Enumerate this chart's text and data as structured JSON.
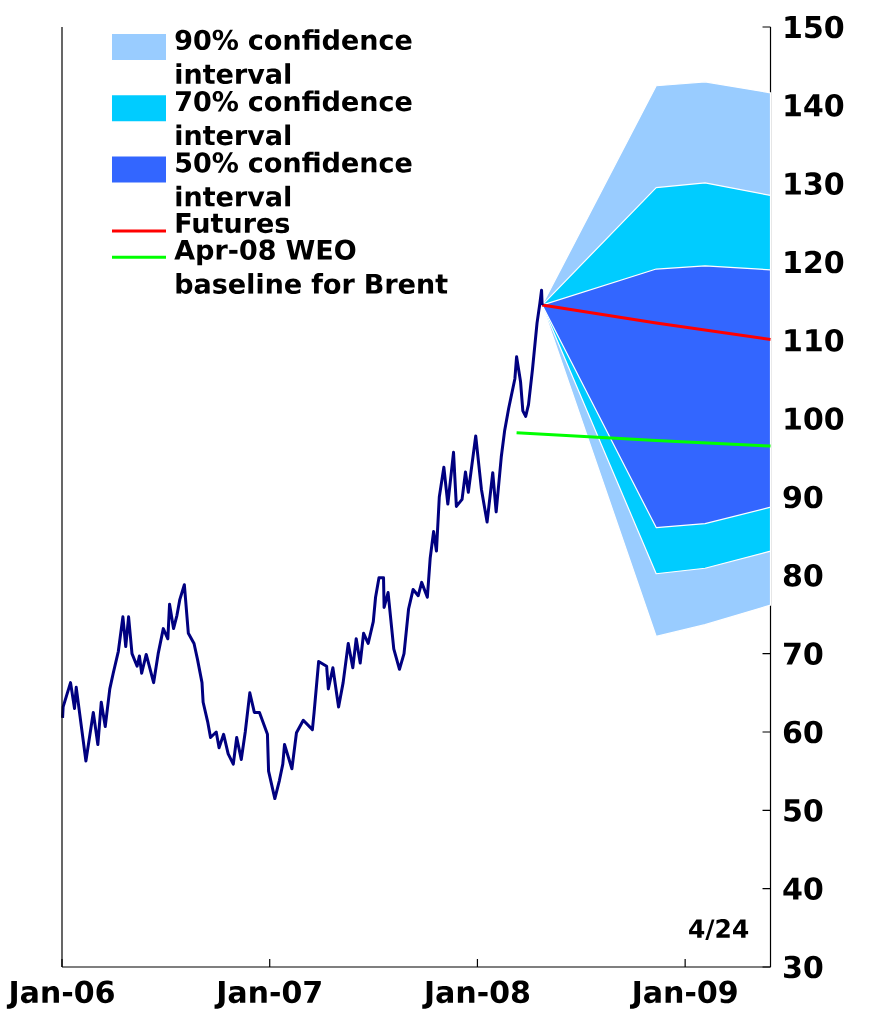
{
  "chart_data": {
    "type": "line",
    "xlim": [
      "2006-01-01",
      "2009-05-31"
    ],
    "ylim": [
      30,
      150
    ],
    "xticks": [
      {
        "value": "2006-01-01",
        "label": "Jan-06"
      },
      {
        "value": "2007-01-01",
        "label": "Jan-07"
      },
      {
        "value": "2008-01-01",
        "label": "Jan-08"
      },
      {
        "value": "2009-01-01",
        "label": "Jan-09"
      }
    ],
    "yticks": [
      30,
      40,
      50,
      60,
      70,
      80,
      90,
      100,
      110,
      120,
      130,
      140,
      150
    ],
    "legend": "top left",
    "annotations": [
      "4/24"
    ],
    "series": [
      {
        "type": "area",
        "name": "90% confidence interval",
        "color": "#99ccff",
        "x": [
          "2008-04-24",
          "2008-11-11",
          "2009-02-05",
          "2009-05-31"
        ],
        "values": [
          null,
          null,
          null,
          null
        ],
        "lower": [
          114.5,
          72.2,
          73.7,
          76.2
        ],
        "upper": [
          114.5,
          142.5,
          143.0,
          141.6
        ]
      },
      {
        "type": "area",
        "name": "70% confidence interval",
        "color": "#00ccff",
        "x": [
          "2008-04-24",
          "2008-11-11",
          "2009-02-05",
          "2009-05-31"
        ],
        "values": [
          null,
          null,
          null,
          null
        ],
        "lower": [
          114.5,
          80.2,
          80.9,
          83.1
        ],
        "upper": [
          114.5,
          129.5,
          130.1,
          128.5
        ]
      },
      {
        "type": "area",
        "name": "50% confidence interval",
        "color": "#3366ff",
        "x": [
          "2008-04-24",
          "2008-11-11",
          "2009-02-05",
          "2009-05-31"
        ],
        "values": [
          null,
          null,
          null,
          null
        ],
        "lower": [
          114.5,
          86.1,
          86.6,
          88.7
        ],
        "upper": [
          114.5,
          119.1,
          119.5,
          119.0
        ]
      },
      {
        "name": "Futures",
        "color": "#ff0000",
        "x": [
          "2008-04-24",
          "2008-11-11",
          "2009-05-31"
        ],
        "values": [
          114.5,
          112.2,
          110.1
        ]
      },
      {
        "name": "Apr-08 WEO baseline for Brent",
        "color": "#00ff00",
        "x": [
          "2008-03-10",
          "2008-11-11",
          "2009-05-31"
        ],
        "values": [
          98.2,
          97.2,
          96.5
        ]
      },
      {
        "color": "#000080",
        "x": [
          "2006-01-02",
          "2006-01-03",
          "2006-01-16",
          "2006-01-23",
          "2006-01-26",
          "2006-02-12",
          "2006-02-25",
          "2006-03-05",
          "2006-03-11",
          "2006-03-18",
          "2006-03-26",
          "2006-04-01",
          "2006-04-10",
          "2006-04-18",
          "2006-04-23",
          "2006-04-28",
          "2006-05-04",
          "2006-05-13",
          "2006-05-17",
          "2006-05-21",
          "2006-05-29",
          "2006-06-11",
          "2006-06-19",
          "2006-06-28",
          "2006-07-06",
          "2006-07-09",
          "2006-07-16",
          "2006-07-22",
          "2006-07-27",
          "2006-08-04",
          "2006-08-11",
          "2006-08-21",
          "2006-08-27",
          "2006-09-04",
          "2006-09-06",
          "2006-09-14",
          "2006-09-19",
          "2006-09-29",
          "2006-10-04",
          "2006-10-12",
          "2006-10-20",
          "2006-10-29",
          "2006-11-04",
          "2006-11-12",
          "2006-11-19",
          "2006-11-27",
          "2006-12-05",
          "2006-12-14",
          "2006-12-28",
          "2006-12-30",
          "2007-01-10",
          "2007-01-18",
          "2007-01-24",
          "2007-01-27",
          "2007-02-09",
          "2007-02-17",
          "2007-03-01",
          "2007-03-17",
          "2007-03-20",
          "2007-03-28",
          "2007-04-11",
          "2007-04-14",
          "2007-04-22",
          "2007-05-02",
          "2007-05-10",
          "2007-05-19",
          "2007-05-27",
          "2007-06-02",
          "2007-06-09",
          "2007-06-15",
          "2007-06-23",
          "2007-07-02",
          "2007-07-06",
          "2007-07-12",
          "2007-07-20",
          "2007-07-21",
          "2007-07-28",
          "2007-08-07",
          "2007-08-17",
          "2007-08-25",
          "2007-09-02",
          "2007-09-10",
          "2007-09-19",
          "2007-09-25",
          "2007-10-05",
          "2007-10-10",
          "2007-10-16",
          "2007-10-21",
          "2007-10-26",
          "2007-11-03",
          "2007-11-10",
          "2007-11-20",
          "2007-11-25",
          "2007-12-05",
          "2007-12-11",
          "2007-12-16",
          "2007-12-29",
          "2008-01-08",
          "2008-01-18",
          "2008-01-28",
          "2008-02-03",
          "2008-02-12",
          "2008-02-18",
          "2008-02-25",
          "2008-03-07",
          "2008-03-10",
          "2008-03-17",
          "2008-03-21",
          "2008-03-26",
          "2008-03-31",
          "2008-04-07",
          "2008-04-15",
          "2008-04-20",
          "2008-04-23",
          "2008-04-24"
        ],
        "values": [
          61.8,
          63.2,
          66.3,
          63.0,
          65.7,
          56.3,
          62.5,
          58.4,
          63.8,
          60.7,
          65.5,
          67.5,
          70.3,
          74.7,
          70.9,
          74.7,
          70.0,
          68.4,
          69.7,
          67.5,
          69.9,
          66.3,
          70.0,
          73.2,
          71.9,
          76.3,
          73.2,
          74.9,
          76.9,
          78.8,
          72.6,
          71.3,
          69.3,
          66.3,
          63.8,
          61.3,
          59.3,
          60.0,
          58.0,
          59.7,
          57.2,
          55.9,
          59.3,
          56.5,
          60.0,
          65.0,
          62.5,
          62.5,
          59.7,
          55.0,
          51.5,
          53.8,
          55.9,
          58.4,
          55.3,
          59.9,
          61.5,
          60.3,
          62.5,
          69.0,
          68.4,
          65.5,
          68.2,
          63.2,
          66.3,
          71.3,
          68.2,
          71.9,
          68.8,
          72.6,
          71.3,
          74.1,
          77.2,
          79.7,
          79.7,
          75.9,
          77.8,
          70.6,
          68.0,
          70.0,
          75.7,
          78.2,
          77.4,
          79.1,
          77.2,
          82.2,
          85.6,
          83.1,
          90.0,
          93.8,
          89.1,
          95.7,
          88.8,
          89.7,
          93.2,
          90.6,
          97.8,
          91.0,
          86.8,
          93.1,
          88.1,
          95.1,
          98.5,
          101.3,
          105.1,
          107.9,
          104.7,
          101.0,
          100.3,
          101.8,
          106.3,
          112.2,
          114.7,
          116.4,
          114.5
        ]
      }
    ]
  }
}
